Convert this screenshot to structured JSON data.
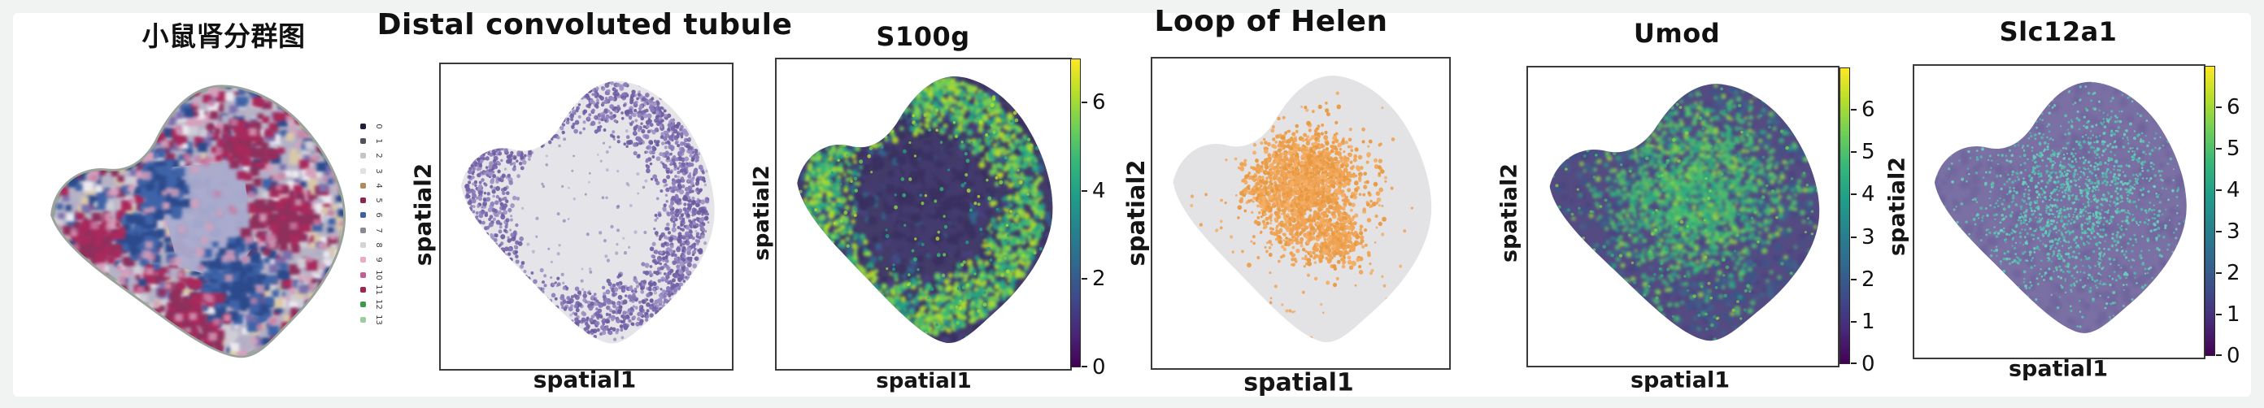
{
  "figure": {
    "kind": "multi-panel spatial transcriptomics figure, mouse kidney",
    "background_color": "#f1f2f2",
    "sheet_color": "#ffffff",
    "frame_color": "#3a3a3a"
  },
  "colors": {
    "viridis": [
      "#440154",
      "#482878",
      "#3e4a89",
      "#31688e",
      "#26828e",
      "#1f9e89",
      "#35b779",
      "#6ece58",
      "#b5de2b",
      "#fde725"
    ]
  },
  "chart_data": [
    {
      "panel": 1,
      "type": "scatter",
      "subtype": "spatial-cluster-map",
      "title": "小鼠肾分群图",
      "xlabel": "",
      "ylabel": "",
      "legend": {
        "position": "right",
        "labels": [
          "0",
          "1",
          "2",
          "3",
          "4",
          "5",
          "6",
          "7",
          "8",
          "9",
          "10",
          "11",
          "12",
          "13"
        ],
        "colors": [
          "#1f1f3d",
          "#55505a",
          "#c6c4ca",
          "#e2e0dd",
          "#b08a5a",
          "#8e2450",
          "#3f5f9e",
          "#8a8a92",
          "#d5d2d8",
          "#eeaac2",
          "#c45c94",
          "#a02652",
          "#3c9a4c",
          "#9ccd9c"
        ]
      },
      "base_color": "#b7b3c6",
      "medulla_color": "#a9abce",
      "rim_color": "#9aa39b",
      "speckle_colors": [
        "#b2aec6",
        "#cfcdd6",
        "#3f63a8",
        "#2b4a8c",
        "#a8295c",
        "#8e2f5c",
        "#d6a0bc",
        "#7a6fae",
        "#d9c9a8",
        "#eceaf0"
      ],
      "cluster_blue": [
        "#3f63a8",
        "#2b4a8c"
      ],
      "cluster_red": [
        "#a8295c",
        "#8e2f5c"
      ],
      "cluster_pink": [
        "#d6a0bc",
        "#c87ea6"
      ],
      "description": "Mouse kidney spatial clustering map: 14 clusters (0-13) as colored spots over a tissue section; solid lavender inner medulla region; red and blue cluster patches through the cortex"
    },
    {
      "panel": 2,
      "type": "scatter",
      "subtype": "spatial-highlight",
      "title": "Distal convoluted tubule",
      "xlabel": "spatial1",
      "ylabel": "spatial2",
      "tissue_color": "#e5e4e8",
      "highlight_colors": [
        "#8a7ab8",
        "#7463a8",
        "#9d90c4",
        "#6a5a9e"
      ],
      "grid": false,
      "pattern": "highlighted purple spots form a dense ring around the outer cortex; central medulla mostly unlabeled"
    },
    {
      "panel": 3,
      "type": "scatter",
      "subtype": "spatial-expression",
      "title": "S100g",
      "xlabel": "spatial1",
      "ylabel": "spatial2",
      "colormap": "viridis",
      "colorbar_ticks": [
        0,
        2,
        4,
        6
      ],
      "value_range": [
        0,
        7
      ],
      "base_color": "#433b68",
      "high_colors": [
        "#6ece58",
        "#b5de2b",
        "#35b779",
        "#8fd744",
        "#1f9e89"
      ],
      "low_colors": [
        "#3b3263",
        "#4a4180",
        "#31688e",
        "#372e5e"
      ],
      "dark_center_colors": [
        "#3a3161",
        "#443b6e"
      ],
      "pattern": "high expression (green/yellow) in outer cortex ring, low (dark purple) in central medulla"
    },
    {
      "panel": 4,
      "type": "scatter",
      "subtype": "spatial-highlight",
      "title": "Loop of Helen",
      "xlabel": "spatial1",
      "ylabel": "spatial2",
      "tissue_color": "#e3e2e5",
      "highlight_colors": [
        "#f0a455",
        "#eda04f",
        "#f3ae66",
        "#e8993f"
      ],
      "grid": false,
      "pattern": "orange highlighted spots concentrated in one central medullary cluster with small satellite clusters below-right"
    },
    {
      "panel": 5,
      "type": "scatter",
      "subtype": "spatial-expression",
      "title": "Umod",
      "xlabel": "spatial1",
      "ylabel": "spatial2",
      "colormap": "viridis",
      "colorbar_ticks": [
        0,
        1,
        2,
        3,
        4,
        5,
        6
      ],
      "value_range": [
        0,
        7
      ],
      "base_color": "#544b82",
      "high_colors": [
        "#35b779",
        "#49c16d",
        "#8fd744",
        "#2aa184",
        "#56c667"
      ],
      "low_colors": [
        "#3a6b8e",
        "#35588a",
        "#4a4180"
      ],
      "pattern": "elevated expression (teal/green patches) through the central medullary region, low purple at the rim"
    },
    {
      "panel": 6,
      "type": "scatter",
      "subtype": "spatial-expression",
      "title": "Slc12a1",
      "xlabel": "spatial1",
      "ylabel": "spatial2",
      "colormap": "viridis",
      "colorbar_ticks": [
        0,
        1,
        2,
        3,
        4,
        5,
        6
      ],
      "value_range": [
        0,
        7
      ],
      "base_color": "#7b70a4",
      "high_colors": [
        "#5fc4b2",
        "#6fd0bd",
        "#54b8ac"
      ],
      "low_colors": [
        "#6c6199",
        "#746aa0"
      ],
      "pattern": "sparse faint teal speckles over uniform light-purple tissue, slightly denser toward the center"
    }
  ]
}
